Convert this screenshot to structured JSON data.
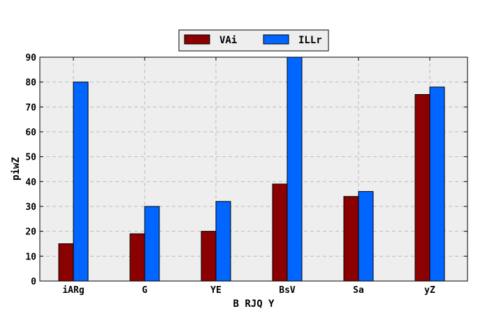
{
  "chart_data": {
    "type": "bar",
    "title": "",
    "xlabel": "B RJQ Y",
    "ylabel": "piwZ",
    "categories": [
      "iARg",
      "G",
      "YE",
      "BsV",
      "Sa",
      "yZ"
    ],
    "series": [
      {
        "name": "VAi",
        "values": [
          15,
          19,
          20,
          39,
          34,
          75
        ],
        "color": "#8b0000"
      },
      {
        "name": "ILLr",
        "values": [
          80,
          30,
          32,
          90,
          36,
          78
        ],
        "color": "#0066ff"
      }
    ],
    "ylim": [
      0,
      90
    ],
    "yticks": [
      0,
      10,
      20,
      30,
      40,
      50,
      60,
      70,
      80,
      90
    ],
    "grid": true,
    "legend_position": "top-center",
    "background": "#eeeeee"
  }
}
